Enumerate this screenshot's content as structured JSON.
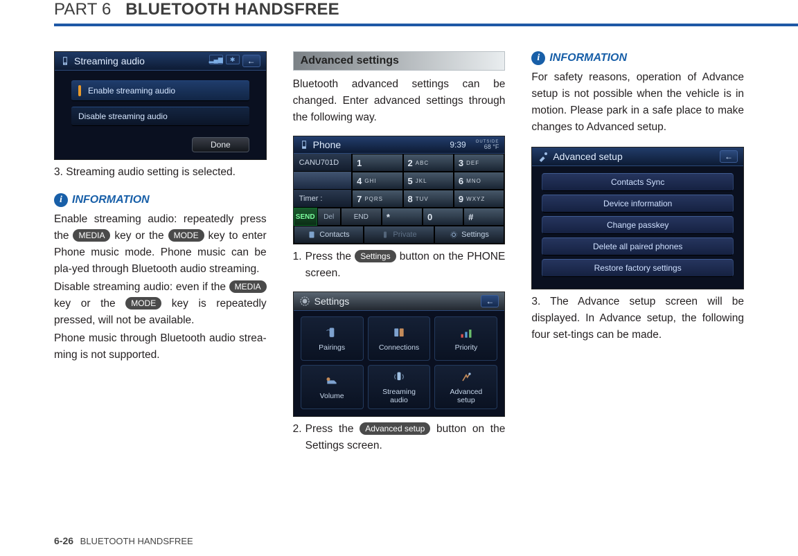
{
  "header": {
    "part": "PART 6",
    "title": "BLUETOOTH HANDSFREE"
  },
  "footer": {
    "page": "6-26",
    "label": "BLUETOOTH HANDSFREE"
  },
  "col1": {
    "shot_title": "Streaming audio",
    "opt_enable": "Enable streaming audio",
    "opt_disable": "Disable streaming audio",
    "done": "Done",
    "step3": "3. Streaming audio setting is selected.",
    "info_label": "INFORMATION",
    "p1a": "Enable streaming audio: repeatedly press the ",
    "key_media": "MEDIA",
    "p1b": " key or the ",
    "key_mode": "MODE",
    "p1c": " key to enter Phone music mode. Phone music can be pla-yed through Bluetooth audio streaming.",
    "p2a": "Disable streaming audio: even if the ",
    "p2b": " key or the ",
    "p2c": " key is repeatedly pressed, will not be available.",
    "p3": "Phone music through Bluetooth audio strea-ming is not supported."
  },
  "col2": {
    "section": "Advanced settings",
    "intro": "Bluetooth advanced settings can be changed. Enter advanced settings through the following way.",
    "phone_title": "Phone",
    "time": "9:39",
    "temp_label": "OUTSIDE",
    "temp": "68 °F",
    "field1": "CANU701D",
    "field2": "",
    "field3": "Timer :",
    "keys": [
      {
        "d": "1",
        "l": ""
      },
      {
        "d": "2",
        "l": "ABC"
      },
      {
        "d": "3",
        "l": "DEF"
      },
      {
        "d": "4",
        "l": "GHI"
      },
      {
        "d": "5",
        "l": "JKL"
      },
      {
        "d": "6",
        "l": "MNO"
      },
      {
        "d": "7",
        "l": "PQRS"
      },
      {
        "d": "8",
        "l": "TUV"
      },
      {
        "d": "9",
        "l": "WXYZ"
      },
      {
        "d": "*",
        "l": ""
      },
      {
        "d": "0",
        "l": ""
      },
      {
        "d": "#",
        "l": ""
      }
    ],
    "send": "SEND",
    "del": "Del",
    "end": "END",
    "tab_contacts": "Contacts",
    "tab_private": "Private",
    "tab_settings": "Settings",
    "step1a": "Press the ",
    "step1_btn": "Settings",
    "step1b": " button on the PHONE screen.",
    "sg_title": "Settings",
    "sg": [
      "Pairings",
      "Connections",
      "Priority",
      "Volume",
      "Streaming\naudio",
      "Advanced\nsetup"
    ],
    "step2a": "Press the ",
    "step2_btn": "Advanced setup",
    "step2b": " button on the Settings screen."
  },
  "col3": {
    "info_label": "INFORMATION",
    "warn": "For safety reasons, operation of Advance setup is not possible when the vehicle is in motion. Please park in a safe place to make changes to Advanced setup.",
    "as_title": "Advanced setup",
    "as_items": [
      "Contacts Sync",
      "Device information",
      "Change passkey",
      "Delete all paired phones",
      "Restore factory settings"
    ],
    "step3": "3. The Advance setup screen will be displayed. In Advance setup, the following four set-tings can be made."
  }
}
